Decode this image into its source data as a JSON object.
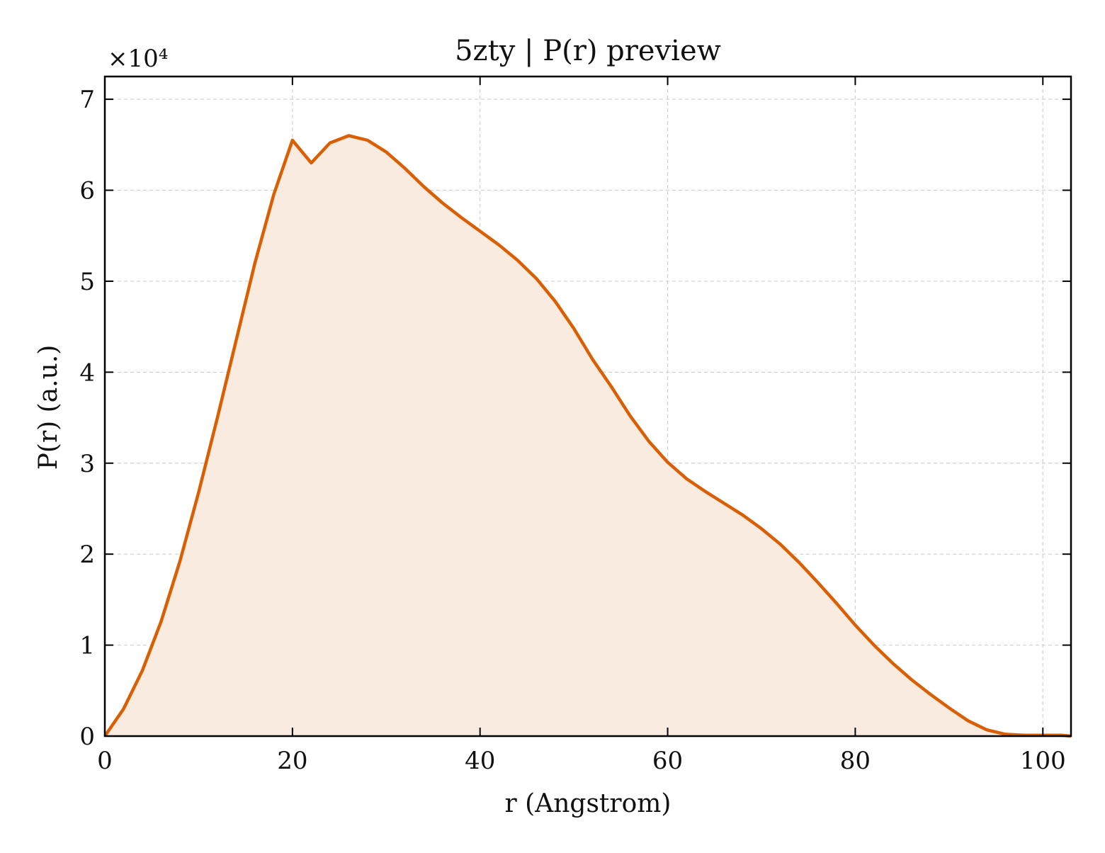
{
  "chart_data": {
    "type": "area",
    "title": "5zty | P(r) preview",
    "xlabel": "r (Angstrom)",
    "ylabel": "P(r) (a.u.)",
    "y_multiplier_label": "×10⁴",
    "xlim": [
      0,
      103
    ],
    "ylim": [
      0,
      7.25
    ],
    "x_ticks": [
      0,
      20,
      40,
      60,
      80,
      100
    ],
    "x_tick_labels": [
      "0",
      "20",
      "40",
      "60",
      "80",
      "100"
    ],
    "y_ticks": [
      0,
      1,
      2,
      3,
      4,
      5,
      6,
      7
    ],
    "y_tick_labels": [
      "0",
      "1",
      "2",
      "3",
      "4",
      "5",
      "6",
      "7"
    ],
    "grid": true,
    "colors": {
      "line": "#d95f02",
      "fill": "#f9ebe0",
      "grid": "#d0d0d0"
    },
    "series": [
      {
        "x": [
          0,
          2,
          4,
          6,
          8,
          10,
          12,
          14,
          16,
          18,
          20,
          22,
          24,
          26,
          28,
          30,
          32,
          34,
          36,
          38,
          40,
          42,
          44,
          46,
          48,
          50,
          52,
          54,
          56,
          58,
          60,
          62,
          64,
          66,
          68,
          70,
          72,
          74,
          76,
          78,
          80,
          82,
          84,
          86,
          88,
          90,
          92,
          94,
          96,
          98,
          100,
          102,
          103
        ],
        "values": [
          0.0,
          0.3,
          0.72,
          1.26,
          1.92,
          2.68,
          3.5,
          4.35,
          5.2,
          5.95,
          6.55,
          6.3,
          6.52,
          6.6,
          6.55,
          6.42,
          6.24,
          6.04,
          5.86,
          5.7,
          5.55,
          5.4,
          5.23,
          5.03,
          4.78,
          4.48,
          4.14,
          3.84,
          3.52,
          3.24,
          3.01,
          2.83,
          2.69,
          2.56,
          2.43,
          2.28,
          2.11,
          1.91,
          1.69,
          1.46,
          1.22,
          1.0,
          0.8,
          0.62,
          0.46,
          0.31,
          0.17,
          0.07,
          0.02,
          0.01,
          0.01,
          0.01,
          0.0
        ]
      }
    ]
  }
}
